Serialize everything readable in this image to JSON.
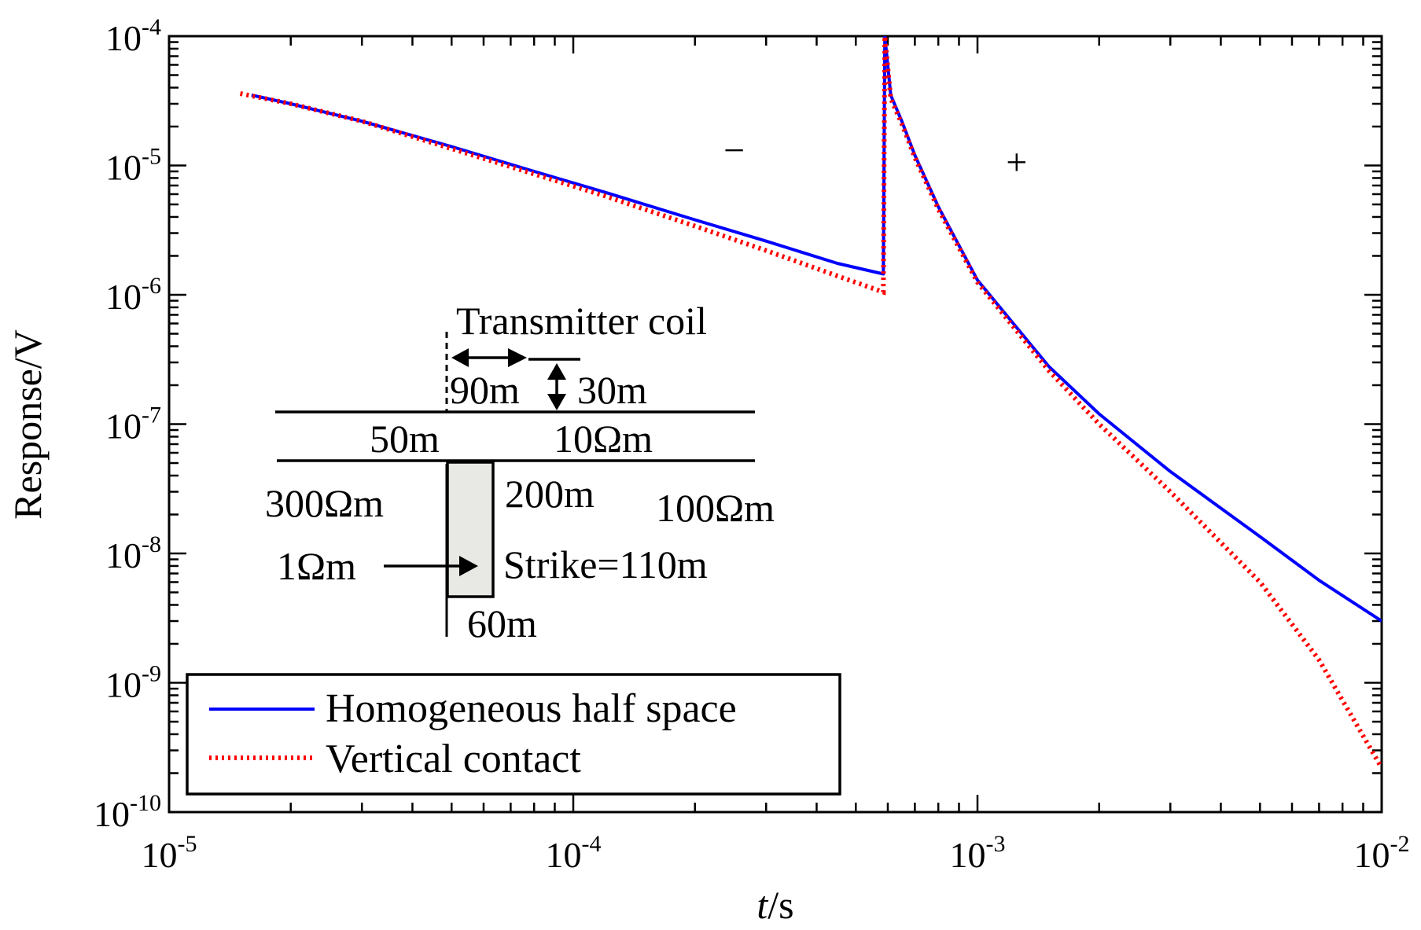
{
  "chart_data": {
    "type": "line",
    "xscale": "log",
    "yscale": "log",
    "xlim": [
      1e-05,
      0.01
    ],
    "ylim": [
      1e-10,
      0.0001
    ],
    "xlabel_italic": "t",
    "xlabel_rest": "/s",
    "ylabel": "Response/V",
    "x_tick_labels": [
      {
        "value": 1e-05,
        "base": "10",
        "exp": "-5"
      },
      {
        "value": 0.0001,
        "base": "10",
        "exp": "-4"
      },
      {
        "value": 0.001,
        "base": "10",
        "exp": "-3"
      },
      {
        "value": 0.01,
        "base": "10",
        "exp": "-2"
      }
    ],
    "y_tick_labels": [
      {
        "value": 0.0001,
        "base": "10",
        "exp": "-4"
      },
      {
        "value": 1e-05,
        "base": "10",
        "exp": "-5"
      },
      {
        "value": 1e-06,
        "base": "10",
        "exp": "-6"
      },
      {
        "value": 1e-07,
        "base": "10",
        "exp": "-7"
      },
      {
        "value": 1e-08,
        "base": "10",
        "exp": "-8"
      },
      {
        "value": 1e-09,
        "base": "10",
        "exp": "-9"
      },
      {
        "value": 1e-10,
        "base": "10",
        "exp": "-10"
      }
    ],
    "series": [
      {
        "name": "Homogeneous half space",
        "color": "#0000ff",
        "style": "solid",
        "points": [
          [
            1.6e-05,
            3.5e-05
          ],
          [
            2e-05,
            3e-05
          ],
          [
            3e-05,
            2.2e-05
          ],
          [
            5e-05,
            1.4e-05
          ],
          [
            8e-05,
            9e-06
          ],
          [
            0.00012,
            6.2e-06
          ],
          [
            0.0002,
            3.8e-06
          ],
          [
            0.0003,
            2.6e-06
          ],
          [
            0.00045,
            1.75e-06
          ],
          [
            0.000585,
            1.45e-06
          ],
          [
            0.00059,
            0.0001
          ],
          [
            0.00061,
            3.5e-05
          ],
          [
            0.00065,
            2.2e-05
          ],
          [
            0.0007,
            1.2e-05
          ],
          [
            0.0008,
            4.8e-06
          ],
          [
            0.001,
            1.3e-06
          ],
          [
            0.0015,
            2.8e-07
          ],
          [
            0.002,
            1.2e-07
          ],
          [
            0.003,
            4.3e-08
          ],
          [
            0.005,
            1.35e-08
          ],
          [
            0.007,
            6.2e-09
          ],
          [
            0.01,
            3e-09
          ]
        ]
      },
      {
        "name": "Vertical contact",
        "color": "#ff0000",
        "style": "dotted",
        "points": [
          [
            1.5e-05,
            3.6e-05
          ],
          [
            2e-05,
            3e-05
          ],
          [
            3e-05,
            2.2e-05
          ],
          [
            5e-05,
            1.35e-05
          ],
          [
            8e-05,
            8.6e-06
          ],
          [
            0.00012,
            5.8e-06
          ],
          [
            0.0002,
            3.4e-06
          ],
          [
            0.0003,
            2.2e-06
          ],
          [
            0.00045,
            1.4e-06
          ],
          [
            0.000585,
            1.05e-06
          ],
          [
            0.00059,
            0.0001
          ],
          [
            0.00061,
            3.3e-05
          ],
          [
            0.00065,
            2.1e-05
          ],
          [
            0.0007,
            1.15e-05
          ],
          [
            0.0008,
            4.6e-06
          ],
          [
            0.001,
            1.25e-06
          ],
          [
            0.0015,
            2.6e-07
          ],
          [
            0.002,
            1e-07
          ],
          [
            0.003,
            3e-08
          ],
          [
            0.005,
            6e-09
          ],
          [
            0.007,
            1.5e-09
          ],
          [
            0.01,
            2.2e-10
          ]
        ]
      }
    ],
    "annotations": [
      {
        "text": "−",
        "x": 0.00025,
        "y": 1.05e-05,
        "meaning": "negative response region"
      },
      {
        "text": "+",
        "x": 0.00125,
        "y": 8.5e-06,
        "meaning": "positive response region"
      }
    ],
    "legend_location": "lower-left"
  },
  "inset": {
    "transmitter_label": "Transmitter coil",
    "offset_label": "90m",
    "height_label": "30m",
    "layer_thickness_label": "50m",
    "layer_resistivity_label": "10Ωm",
    "left_resistivity_label": "300Ωm",
    "right_resistivity_label": "100Ωm",
    "body_depth_label": "200m",
    "body_resistivity_label": "1Ωm",
    "strike_label": "Strike=110m",
    "body_width_label": "60m"
  }
}
